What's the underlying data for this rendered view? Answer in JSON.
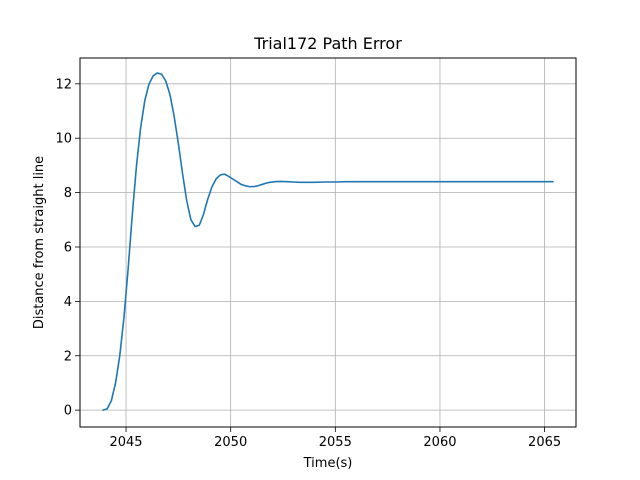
{
  "chart_data": {
    "type": "line",
    "title": "Trial172 Path Error",
    "xlabel": "Time(s)",
    "ylabel": "Distance from straight line",
    "xlim": [
      2042.8,
      2066.5
    ],
    "ylim": [
      -0.62,
      12.95
    ],
    "xticks": [
      2045,
      2050,
      2055,
      2060,
      2065
    ],
    "yticks": [
      0,
      2,
      4,
      6,
      8,
      10,
      12
    ],
    "grid": true,
    "series": [
      {
        "color": "#1f77b4",
        "x": [
          2043.9,
          2044.1,
          2044.3,
          2044.5,
          2044.7,
          2044.9,
          2045.1,
          2045.3,
          2045.5,
          2045.7,
          2045.9,
          2046.1,
          2046.3,
          2046.5,
          2046.7,
          2046.9,
          2047.1,
          2047.3,
          2047.5,
          2047.7,
          2047.9,
          2048.1,
          2048.3,
          2048.5,
          2048.7,
          2048.9,
          2049.1,
          2049.3,
          2049.5,
          2049.7,
          2049.9,
          2050.1,
          2050.3,
          2050.5,
          2050.7,
          2050.9,
          2051.1,
          2051.3,
          2051.5,
          2051.7,
          2051.9,
          2052.1,
          2052.4,
          2052.7,
          2053.0,
          2053.3,
          2053.6,
          2054.0,
          2054.5,
          2055.0,
          2055.5,
          2056.0,
          2056.5,
          2057.0,
          2058.0,
          2059.0,
          2060.0,
          2061.0,
          2062.0,
          2063.0,
          2064.0,
          2065.0,
          2065.4
        ],
        "y": [
          0.0,
          0.05,
          0.35,
          1.0,
          2.0,
          3.4,
          5.2,
          7.2,
          9.0,
          10.4,
          11.4,
          12.0,
          12.3,
          12.4,
          12.35,
          12.1,
          11.6,
          10.8,
          9.8,
          8.7,
          7.7,
          7.0,
          6.75,
          6.8,
          7.2,
          7.75,
          8.2,
          8.5,
          8.65,
          8.68,
          8.6,
          8.5,
          8.4,
          8.3,
          8.25,
          8.22,
          8.22,
          8.25,
          8.3,
          8.35,
          8.38,
          8.4,
          8.41,
          8.4,
          8.39,
          8.38,
          8.38,
          8.38,
          8.39,
          8.39,
          8.4,
          8.4,
          8.4,
          8.4,
          8.4,
          8.4,
          8.4,
          8.4,
          8.4,
          8.4,
          8.4,
          8.4,
          8.4
        ]
      }
    ]
  }
}
